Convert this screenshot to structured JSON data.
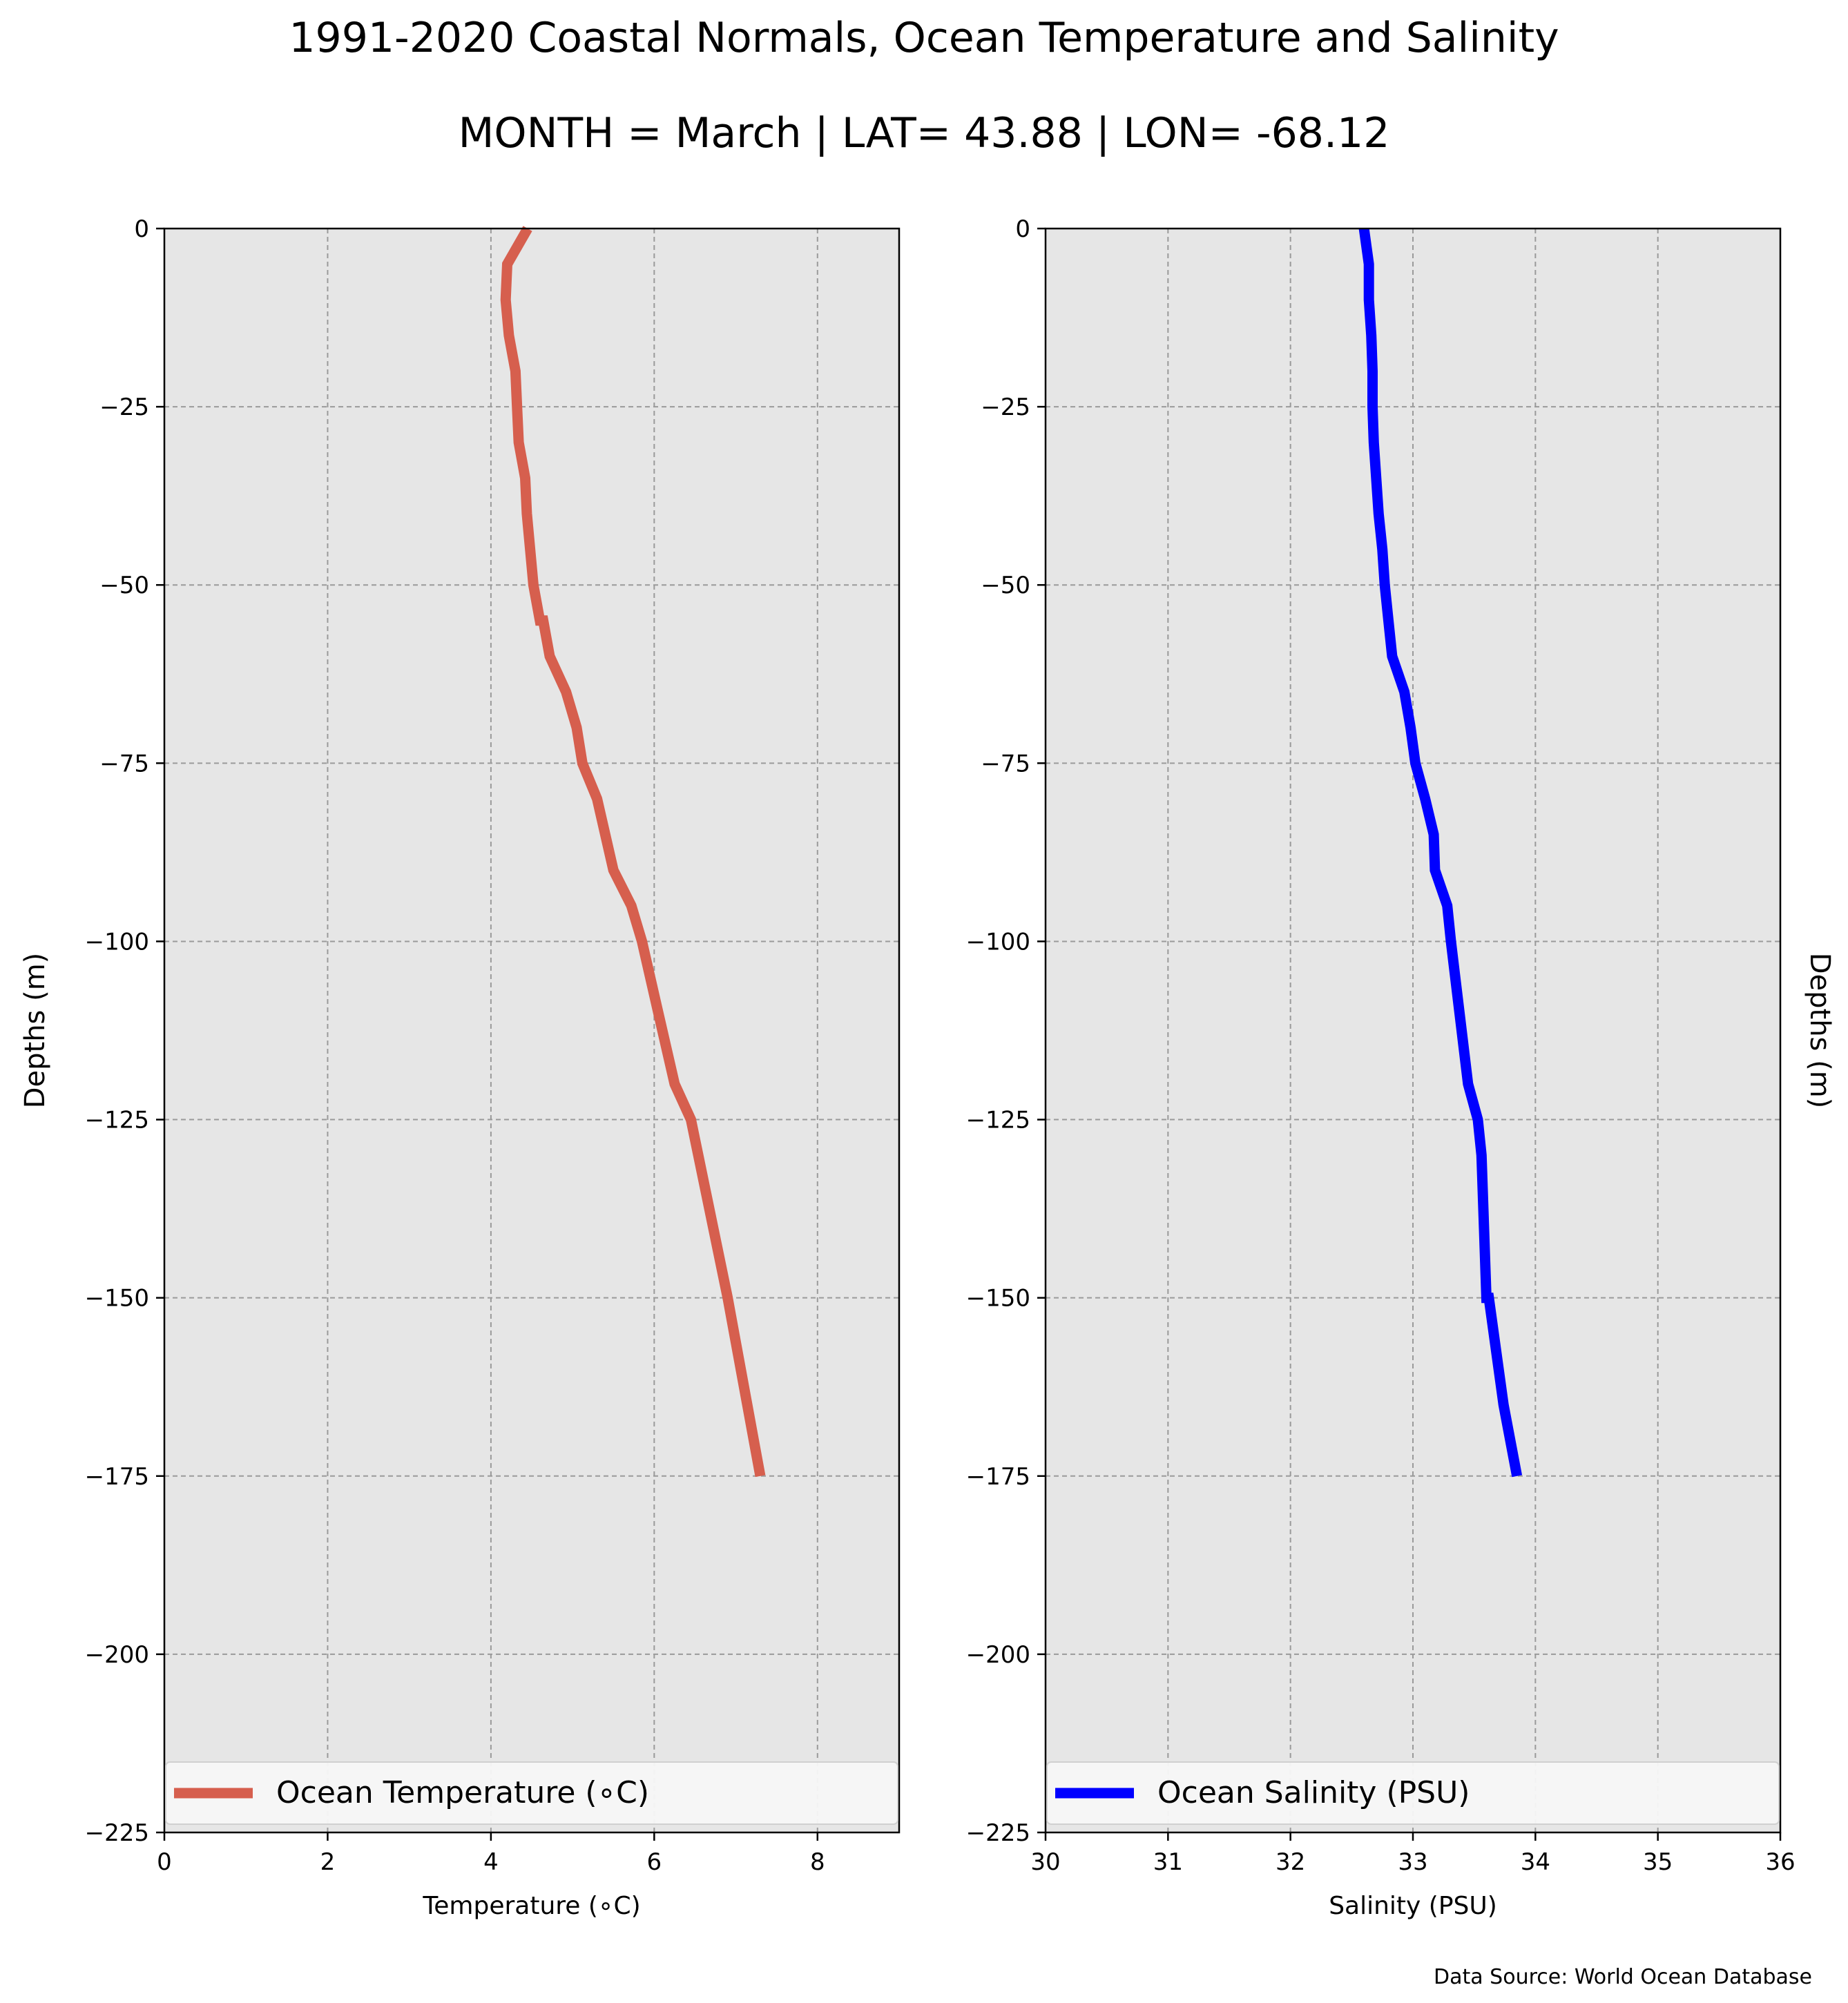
{
  "figure": {
    "title": "1991-2020 Coastal Normals, Ocean Temperature and Salinity",
    "subtitle": "MONTH = March | LAT= 43.88 | LON= -68.12",
    "source_note": "Data Source: World Ocean Database"
  },
  "chart_data": [
    {
      "type": "line",
      "title": "",
      "xlabel": "Temperature (∘C)",
      "ylabel": "Depths (m)",
      "xlim": [
        0,
        9
      ],
      "ylim": [
        -225,
        0
      ],
      "xticks": [
        0,
        2,
        4,
        6,
        8
      ],
      "yticks": [
        0,
        -25,
        -50,
        -75,
        -100,
        -125,
        -150,
        -175,
        -200,
        -225
      ],
      "grid": true,
      "legend": "lower center",
      "series": [
        {
          "name": "Ocean Temperature (∘C)",
          "color": "#d65f4e",
          "x": [
            4.45,
            4.2,
            4.18,
            4.22,
            4.3,
            4.32,
            4.34,
            4.42,
            4.44,
            4.52,
            4.6,
            4.64,
            4.72,
            4.92,
            5.05,
            5.12,
            5.3,
            5.4,
            5.5,
            5.72,
            5.85,
            6.05,
            6.25,
            6.45,
            6.9,
            7.3
          ],
          "y": [
            0,
            -5,
            -10,
            -15,
            -20,
            -25,
            -30,
            -35,
            -40,
            -50,
            -55,
            -55,
            -60,
            -65,
            -70,
            -75,
            -80,
            -85,
            -90,
            -95,
            -100,
            -110,
            -120,
            -125,
            -150,
            -175
          ]
        }
      ]
    },
    {
      "type": "line",
      "title": "",
      "xlabel": "Salinity (PSU)",
      "ylabel": "Depths (m)",
      "xlim": [
        30,
        36
      ],
      "ylim": [
        -225,
        0
      ],
      "xticks": [
        30,
        31,
        32,
        33,
        34,
        35,
        36
      ],
      "yticks": [
        0,
        -25,
        -50,
        -75,
        -100,
        -125,
        -150,
        -175,
        -200,
        -225
      ],
      "grid": true,
      "legend": "lower center",
      "series": [
        {
          "name": "Ocean Salinity (PSU)",
          "color": "#0000ff",
          "x": [
            32.6,
            32.64,
            32.64,
            32.66,
            32.67,
            32.67,
            32.68,
            32.7,
            32.72,
            32.75,
            32.77,
            32.8,
            32.83,
            32.93,
            32.98,
            33.02,
            33.1,
            33.17,
            33.18,
            33.28,
            33.31,
            33.38,
            33.45,
            33.53,
            33.56,
            33.6,
            33.62,
            33.74,
            33.85
          ],
          "y": [
            0,
            -5,
            -10,
            -15,
            -20,
            -25,
            -30,
            -35,
            -40,
            -45,
            -50,
            -55,
            -60,
            -65,
            -70,
            -75,
            -80,
            -85,
            -90,
            -95,
            -100,
            -110,
            -120,
            -125,
            -130,
            -150,
            -150,
            -165,
            -175
          ]
        }
      ]
    }
  ]
}
